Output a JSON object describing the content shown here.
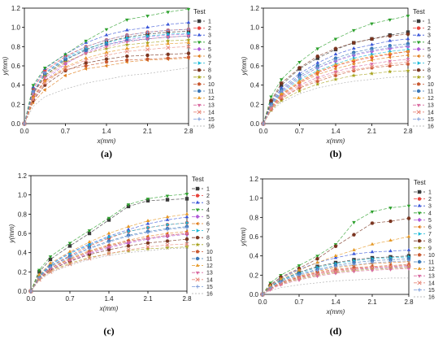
{
  "legend_title": "Test",
  "colors": [
    "#3a3a3a",
    "#e8423b",
    "#3a56d8",
    "#2ca02c",
    "#b05ad8",
    "#e07f1f",
    "#17b9d6",
    "#7a3520",
    "#a8a41f",
    "#c85830",
    "#3a78b8",
    "#e69a28",
    "#d96aa0",
    "#e8887a",
    "#7a9ad8",
    "#a8a8a8"
  ],
  "chart_data": [
    {
      "type": "line",
      "panel_label": "(a)",
      "xlabel": "x(mm)",
      "ylabel": "y(mm)",
      "xlim": [
        0,
        2.8
      ],
      "ylim": [
        0,
        1.2
      ],
      "xticks": [
        "0.0",
        "0.7",
        "1.4",
        "2.1",
        "2.8"
      ],
      "yticks": [
        "0.0",
        "0.2",
        "0.4",
        "0.6",
        "0.8",
        "1.0",
        "1.2"
      ],
      "x": [
        0,
        0.15,
        0.35,
        0.7,
        1.05,
        1.4,
        1.75,
        2.1,
        2.45,
        2.8
      ],
      "series": [
        {
          "name": "1",
          "values": [
            0,
            0.32,
            0.5,
            0.66,
            0.77,
            0.85,
            0.9,
            0.93,
            0.95,
            0.96
          ]
        },
        {
          "name": "2",
          "values": [
            0,
            0.36,
            0.55,
            0.7,
            0.8,
            0.87,
            0.92,
            0.95,
            0.97,
            0.98
          ]
        },
        {
          "name": "3",
          "values": [
            0,
            0.38,
            0.57,
            0.72,
            0.84,
            0.92,
            0.97,
            1.0,
            1.03,
            1.05
          ]
        },
        {
          "name": "4",
          "values": [
            0,
            0.4,
            0.58,
            0.72,
            0.86,
            0.98,
            1.08,
            1.12,
            1.16,
            1.19
          ]
        },
        {
          "name": "5",
          "values": [
            0,
            0.25,
            0.45,
            0.62,
            0.74,
            0.82,
            0.87,
            0.9,
            0.92,
            0.93
          ]
        },
        {
          "name": "6",
          "values": [
            0,
            0.22,
            0.35,
            0.5,
            0.57,
            0.6,
            0.64,
            0.66,
            0.67,
            0.68
          ]
        },
        {
          "name": "7",
          "values": [
            0,
            0.33,
            0.52,
            0.68,
            0.78,
            0.84,
            0.89,
            0.91,
            0.93,
            0.94
          ]
        },
        {
          "name": "8",
          "values": [
            0,
            0.24,
            0.4,
            0.55,
            0.63,
            0.67,
            0.7,
            0.71,
            0.72,
            0.73
          ]
        },
        {
          "name": "9",
          "values": [
            0,
            0.3,
            0.5,
            0.64,
            0.73,
            0.78,
            0.82,
            0.84,
            0.86,
            0.87
          ]
        },
        {
          "name": "10",
          "values": [
            0,
            0.28,
            0.45,
            0.56,
            0.6,
            0.64,
            0.66,
            0.67,
            0.68,
            0.69
          ]
        },
        {
          "name": "11",
          "values": [
            0,
            0.33,
            0.52,
            0.67,
            0.76,
            0.82,
            0.86,
            0.88,
            0.9,
            0.91
          ]
        },
        {
          "name": "12",
          "values": [
            0,
            0.27,
            0.44,
            0.59,
            0.68,
            0.74,
            0.78,
            0.81,
            0.83,
            0.84
          ]
        },
        {
          "name": "13",
          "values": [
            0,
            0.31,
            0.48,
            0.63,
            0.73,
            0.8,
            0.85,
            0.88,
            0.9,
            0.91
          ]
        },
        {
          "name": "14",
          "values": [
            0,
            0.25,
            0.42,
            0.58,
            0.66,
            0.71,
            0.75,
            0.77,
            0.79,
            0.8
          ]
        },
        {
          "name": "15",
          "values": [
            0,
            0.33,
            0.53,
            0.69,
            0.8,
            0.87,
            0.92,
            0.95,
            0.97,
            0.98
          ]
        },
        {
          "name": "16",
          "values": [
            0,
            0.18,
            0.28,
            0.36,
            0.42,
            0.46,
            0.5,
            0.52,
            0.55,
            0.58
          ]
        }
      ]
    },
    {
      "type": "line",
      "panel_label": "(b)",
      "xlabel": "x(mm)",
      "ylabel": "y(mm)",
      "xlim": [
        0,
        2.8
      ],
      "ylim": [
        0,
        1.2
      ],
      "xticks": [
        "0.0",
        "0.7",
        "1.4",
        "2.1",
        "2.8"
      ],
      "yticks": [
        "0.0",
        "0.2",
        "0.4",
        "0.6",
        "0.8",
        "1.0",
        "1.2"
      ],
      "x": [
        0,
        0.15,
        0.35,
        0.7,
        1.05,
        1.4,
        1.75,
        2.1,
        2.45,
        2.8
      ],
      "series": [
        {
          "name": "1",
          "values": [
            0,
            0.22,
            0.4,
            0.57,
            0.68,
            0.77,
            0.84,
            0.88,
            0.92,
            0.95
          ]
        },
        {
          "name": "2",
          "values": [
            0,
            0.17,
            0.3,
            0.43,
            0.53,
            0.6,
            0.65,
            0.69,
            0.72,
            0.75
          ]
        },
        {
          "name": "3",
          "values": [
            0,
            0.21,
            0.37,
            0.52,
            0.63,
            0.72,
            0.78,
            0.82,
            0.86,
            0.88
          ]
        },
        {
          "name": "4",
          "values": [
            0,
            0.28,
            0.46,
            0.64,
            0.78,
            0.88,
            0.97,
            1.04,
            1.08,
            1.12
          ]
        },
        {
          "name": "5",
          "values": [
            0,
            0.19,
            0.33,
            0.48,
            0.58,
            0.65,
            0.71,
            0.75,
            0.78,
            0.8
          ]
        },
        {
          "name": "6",
          "values": [
            0,
            0.16,
            0.29,
            0.42,
            0.51,
            0.57,
            0.62,
            0.66,
            0.69,
            0.71
          ]
        },
        {
          "name": "7",
          "values": [
            0,
            0.18,
            0.32,
            0.46,
            0.55,
            0.62,
            0.68,
            0.72,
            0.75,
            0.77
          ]
        },
        {
          "name": "8",
          "values": [
            0,
            0.24,
            0.42,
            0.58,
            0.7,
            0.78,
            0.84,
            0.88,
            0.91,
            0.93
          ]
        },
        {
          "name": "9",
          "values": [
            0,
            0.14,
            0.24,
            0.34,
            0.41,
            0.46,
            0.5,
            0.52,
            0.54,
            0.55
          ]
        },
        {
          "name": "10",
          "values": [
            0,
            0.15,
            0.26,
            0.37,
            0.44,
            0.5,
            0.55,
            0.58,
            0.6,
            0.62
          ]
        },
        {
          "name": "11",
          "values": [
            0,
            0.2,
            0.35,
            0.5,
            0.6,
            0.68,
            0.74,
            0.78,
            0.81,
            0.83
          ]
        },
        {
          "name": "12",
          "values": [
            0,
            0.17,
            0.31,
            0.44,
            0.54,
            0.61,
            0.66,
            0.7,
            0.73,
            0.75
          ]
        },
        {
          "name": "13",
          "values": [
            0,
            0.16,
            0.28,
            0.4,
            0.48,
            0.54,
            0.59,
            0.62,
            0.65,
            0.67
          ]
        },
        {
          "name": "14",
          "values": [
            0,
            0.15,
            0.27,
            0.38,
            0.46,
            0.52,
            0.56,
            0.59,
            0.62,
            0.64
          ]
        },
        {
          "name": "15",
          "values": [
            0,
            0.19,
            0.34,
            0.48,
            0.58,
            0.66,
            0.72,
            0.76,
            0.79,
            0.81
          ]
        },
        {
          "name": "16",
          "values": [
            0,
            0.13,
            0.22,
            0.31,
            0.37,
            0.41,
            0.44,
            0.46,
            0.48,
            0.49
          ]
        }
      ]
    },
    {
      "type": "line",
      "panel_label": "(c)",
      "xlabel": "x(mm)",
      "ylabel": "y(mm)",
      "xlim": [
        0,
        2.8
      ],
      "ylim": [
        0,
        1.2
      ],
      "xticks": [
        "0.0",
        "0.7",
        "1.4",
        "2.1",
        "2.8"
      ],
      "yticks": [
        "0.0",
        "0.2",
        "0.4",
        "0.6",
        "0.8",
        "1.0",
        "1.2"
      ],
      "x": [
        0,
        0.15,
        0.35,
        0.7,
        1.05,
        1.4,
        1.75,
        2.1,
        2.45,
        2.8
      ],
      "series": [
        {
          "name": "1",
          "values": [
            0,
            0.2,
            0.33,
            0.47,
            0.6,
            0.74,
            0.88,
            0.94,
            0.95,
            0.96
          ]
        },
        {
          "name": "2",
          "values": [
            0,
            0.15,
            0.26,
            0.37,
            0.47,
            0.55,
            0.62,
            0.66,
            0.69,
            0.71
          ]
        },
        {
          "name": "3",
          "values": [
            0,
            0.16,
            0.28,
            0.4,
            0.49,
            0.57,
            0.64,
            0.7,
            0.74,
            0.77
          ]
        },
        {
          "name": "4",
          "values": [
            0,
            0.22,
            0.36,
            0.5,
            0.63,
            0.76,
            0.9,
            0.96,
            0.99,
            1.01
          ]
        },
        {
          "name": "5",
          "values": [
            0,
            0.13,
            0.22,
            0.31,
            0.39,
            0.45,
            0.5,
            0.54,
            0.57,
            0.59
          ]
        },
        {
          "name": "6",
          "values": [
            0,
            0.14,
            0.24,
            0.34,
            0.42,
            0.48,
            0.53,
            0.57,
            0.6,
            0.62
          ]
        },
        {
          "name": "7",
          "values": [
            0,
            0.16,
            0.27,
            0.39,
            0.48,
            0.56,
            0.62,
            0.66,
            0.69,
            0.71
          ]
        },
        {
          "name": "8",
          "values": [
            0,
            0.13,
            0.22,
            0.31,
            0.38,
            0.43,
            0.47,
            0.5,
            0.52,
            0.54
          ]
        },
        {
          "name": "9",
          "values": [
            0,
            0.12,
            0.21,
            0.29,
            0.35,
            0.39,
            0.42,
            0.44,
            0.45,
            0.46
          ]
        },
        {
          "name": "10",
          "values": [
            0,
            0.14,
            0.24,
            0.33,
            0.41,
            0.47,
            0.52,
            0.55,
            0.58,
            0.6
          ]
        },
        {
          "name": "11",
          "values": [
            0,
            0.15,
            0.26,
            0.36,
            0.45,
            0.52,
            0.58,
            0.62,
            0.65,
            0.67
          ]
        },
        {
          "name": "12",
          "values": [
            0,
            0.17,
            0.29,
            0.41,
            0.51,
            0.6,
            0.67,
            0.73,
            0.77,
            0.8
          ]
        },
        {
          "name": "13",
          "values": [
            0,
            0.13,
            0.23,
            0.32,
            0.4,
            0.46,
            0.51,
            0.55,
            0.58,
            0.6
          ]
        },
        {
          "name": "14",
          "values": [
            0,
            0.12,
            0.2,
            0.28,
            0.34,
            0.39,
            0.43,
            0.46,
            0.48,
            0.49
          ]
        },
        {
          "name": "15",
          "values": [
            0,
            0.14,
            0.25,
            0.35,
            0.44,
            0.51,
            0.57,
            0.61,
            0.64,
            0.66
          ]
        },
        {
          "name": "16",
          "values": [
            0,
            0.11,
            0.19,
            0.27,
            0.33,
            0.37,
            0.4,
            0.42,
            0.44,
            0.45
          ]
        }
      ]
    },
    {
      "type": "line",
      "panel_label": "(d)",
      "xlabel": "x(mm)",
      "ylabel": "y(mm)",
      "xlim": [
        0,
        2.8
      ],
      "ylim": [
        0,
        1.2
      ],
      "xticks": [
        "0.0",
        "0.7",
        "1.4",
        "2.1",
        "2.8"
      ],
      "yticks": [
        "0.0",
        "0.2",
        "0.4",
        "0.6",
        "0.8",
        "1.0",
        "1.2"
      ],
      "x": [
        0,
        0.15,
        0.35,
        0.7,
        1.05,
        1.4,
        1.75,
        2.1,
        2.45,
        2.8
      ],
      "series": [
        {
          "name": "1",
          "values": [
            0,
            0.08,
            0.15,
            0.23,
            0.29,
            0.33,
            0.36,
            0.38,
            0.39,
            0.4
          ]
        },
        {
          "name": "2",
          "values": [
            0,
            0.06,
            0.12,
            0.18,
            0.22,
            0.25,
            0.27,
            0.28,
            0.29,
            0.3
          ]
        },
        {
          "name": "3",
          "values": [
            0,
            0.09,
            0.17,
            0.26,
            0.33,
            0.38,
            0.42,
            0.44,
            0.45,
            0.46
          ]
        },
        {
          "name": "4",
          "values": [
            0,
            0.12,
            0.2,
            0.3,
            0.4,
            0.52,
            0.75,
            0.86,
            0.9,
            0.92
          ]
        },
        {
          "name": "5",
          "values": [
            0,
            0.06,
            0.11,
            0.17,
            0.21,
            0.24,
            0.26,
            0.27,
            0.28,
            0.29
          ]
        },
        {
          "name": "6",
          "values": [
            0,
            0.07,
            0.13,
            0.19,
            0.24,
            0.28,
            0.3,
            0.32,
            0.33,
            0.34
          ]
        },
        {
          "name": "7",
          "values": [
            0,
            0.08,
            0.15,
            0.22,
            0.28,
            0.32,
            0.35,
            0.37,
            0.38,
            0.39
          ]
        },
        {
          "name": "8",
          "values": [
            0,
            0.1,
            0.18,
            0.27,
            0.37,
            0.5,
            0.62,
            0.74,
            0.76,
            0.79
          ]
        },
        {
          "name": "9",
          "values": [
            0,
            0.06,
            0.11,
            0.16,
            0.2,
            0.23,
            0.25,
            0.26,
            0.27,
            0.28
          ]
        },
        {
          "name": "10",
          "values": [
            0,
            0.06,
            0.12,
            0.18,
            0.23,
            0.26,
            0.28,
            0.29,
            0.3,
            0.31
          ]
        },
        {
          "name": "11",
          "values": [
            0,
            0.08,
            0.14,
            0.21,
            0.26,
            0.3,
            0.33,
            0.35,
            0.36,
            0.37
          ]
        },
        {
          "name": "12",
          "values": [
            0,
            0.09,
            0.16,
            0.25,
            0.33,
            0.4,
            0.46,
            0.52,
            0.56,
            0.6
          ]
        },
        {
          "name": "13",
          "values": [
            0,
            0.05,
            0.1,
            0.15,
            0.19,
            0.22,
            0.24,
            0.25,
            0.26,
            0.27
          ]
        },
        {
          "name": "14",
          "values": [
            0,
            0.06,
            0.11,
            0.17,
            0.21,
            0.24,
            0.26,
            0.28,
            0.29,
            0.3
          ]
        },
        {
          "name": "15",
          "values": [
            0,
            0.07,
            0.13,
            0.2,
            0.25,
            0.29,
            0.31,
            0.33,
            0.34,
            0.35
          ]
        },
        {
          "name": "16",
          "values": [
            0,
            0.04,
            0.07,
            0.1,
            0.12,
            0.14,
            0.15,
            0.16,
            0.17,
            0.17
          ]
        }
      ]
    }
  ]
}
